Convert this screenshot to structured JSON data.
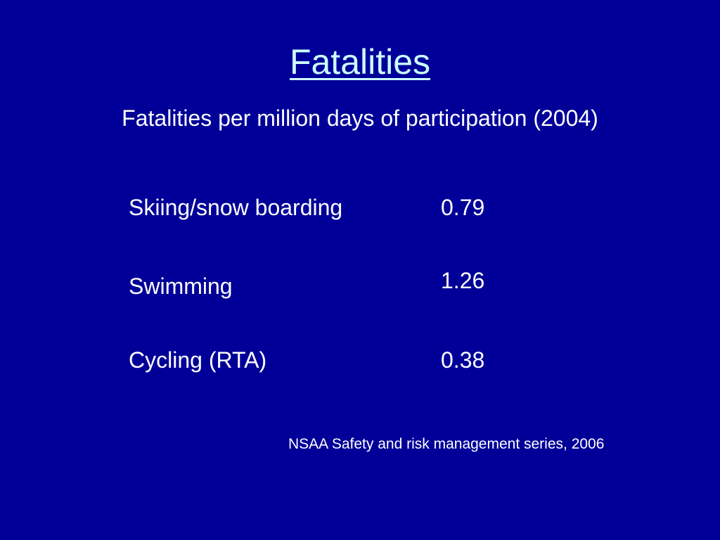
{
  "slide": {
    "title": "Fatalities",
    "subtitle": "Fatalities per million days of participation (2004)",
    "rows": [
      {
        "label": "Skiing/snow boarding",
        "value": "0.79"
      },
      {
        "label": "Swimming",
        "value": "1.26"
      },
      {
        "label": "Cycling (RTA)",
        "value": "0.38"
      }
    ],
    "source": "NSAA Safety and risk management series, 2006"
  },
  "colors": {
    "background": "#000099",
    "title": "#ccffff",
    "text": "#ffffff"
  }
}
